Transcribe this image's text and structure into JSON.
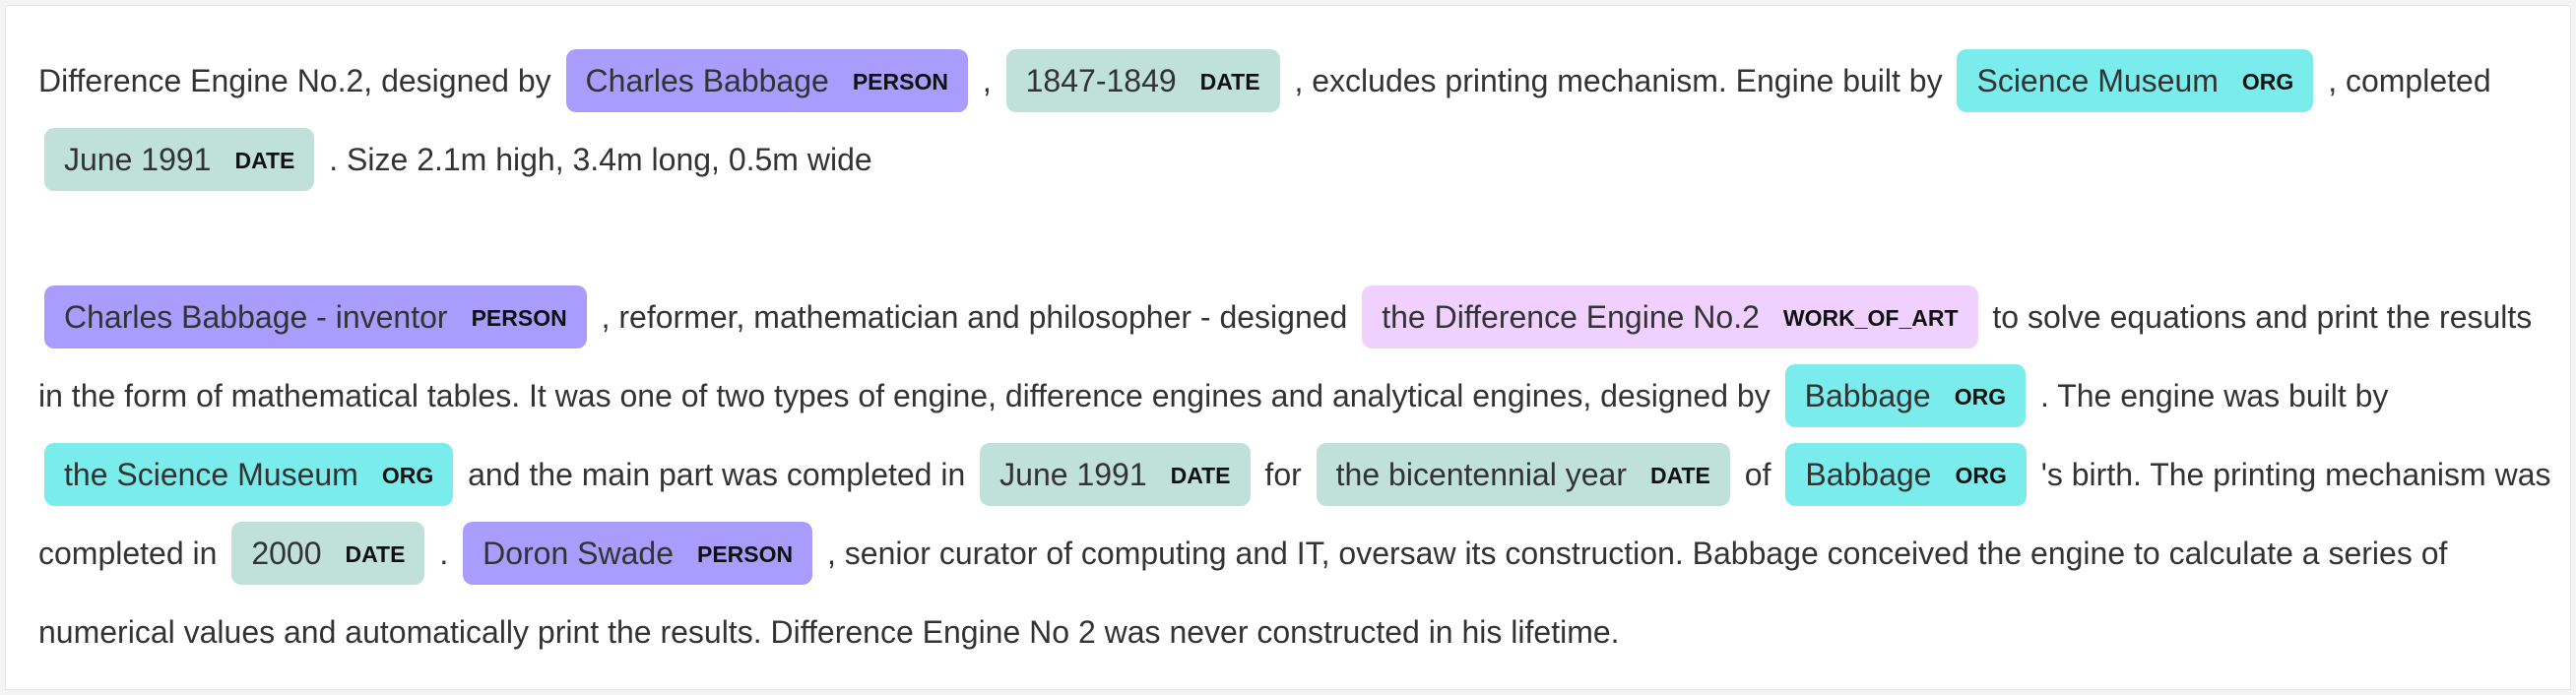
{
  "paragraphs": [
    {
      "segments": [
        {
          "t": "Difference Engine No.2, designed by "
        },
        {
          "e": "Charles Babbage",
          "l": "PERSON"
        },
        {
          "t": " , "
        },
        {
          "e": "1847-1849",
          "l": "DATE"
        },
        {
          "t": " , excludes printing mechanism. Engine built by "
        },
        {
          "e": "Science Museum",
          "l": "ORG"
        },
        {
          "t": " , completed "
        },
        {
          "e": "June 1991",
          "l": "DATE"
        },
        {
          "t": " . Size 2.1m high, 3.4m long, 0.5m wide"
        }
      ]
    },
    {
      "segments": [
        {
          "e": "Charles Babbage - inventor",
          "l": "PERSON"
        },
        {
          "t": " , reformer, mathematician and philosopher - designed "
        },
        {
          "e": "the Difference Engine No.2",
          "l": "WORK_OF_ART"
        },
        {
          "t": " to solve equations and print the results in the form of mathematical tables. It was one of two types of engine, difference engines and analytical engines, designed by "
        },
        {
          "e": "Babbage",
          "l": "ORG"
        },
        {
          "t": " . The engine was built by "
        },
        {
          "e": "the Science Museum",
          "l": "ORG"
        },
        {
          "t": " and the main part was completed in "
        },
        {
          "e": "June 1991",
          "l": "DATE"
        },
        {
          "t": " for "
        },
        {
          "e": "the bicentennial year",
          "l": "DATE"
        },
        {
          "t": " of "
        },
        {
          "e": "Babbage",
          "l": "ORG"
        },
        {
          "t": " 's birth. The printing mechanism was completed in "
        },
        {
          "e": "2000",
          "l": "DATE"
        },
        {
          "t": " . "
        },
        {
          "e": "Doron Swade",
          "l": "PERSON"
        },
        {
          "t": " , senior curator of computing and IT, oversaw its construction. Babbage conceived the engine to calculate a series of numerical values and automatically print the results. Difference Engine No 2 was never constructed in his lifetime."
        }
      ]
    }
  ],
  "entity_colors": {
    "PERSON": "#aa9cfc",
    "DATE": "#bfe1d9",
    "ORG": "#7aecec",
    "WORK_OF_ART": "#f0d0ff"
  }
}
